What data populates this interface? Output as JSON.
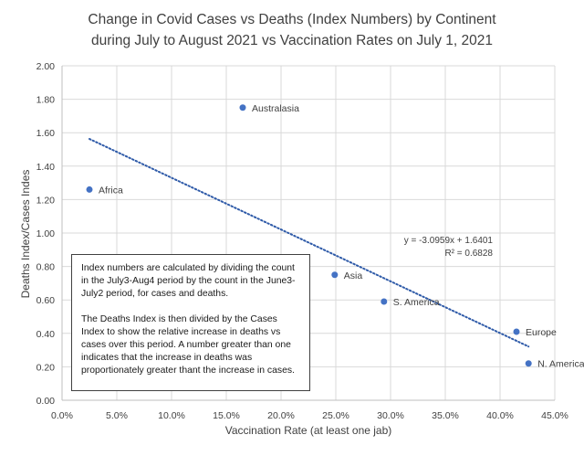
{
  "chart_data": {
    "type": "scatter",
    "title_lines": [
      "Change in Covid Cases vs Deaths  (Index Numbers) by Continent",
      "during July to August 2021 vs Vaccination Rates on July 1, 2021"
    ],
    "xlabel": "Vaccination Rate (at least one jab)",
    "ylabel": "Deaths Index/Cases Indes",
    "xlim": [
      0,
      0.45
    ],
    "ylim": [
      0,
      2.0
    ],
    "x_ticks": [
      0,
      0.05,
      0.1,
      0.15,
      0.2,
      0.25,
      0.3,
      0.35,
      0.4,
      0.45
    ],
    "x_tick_labels": [
      "0.0%",
      "5.0%",
      "10.0%",
      "15.0%",
      "20.0%",
      "25.0%",
      "30.0%",
      "35.0%",
      "40.0%",
      "45.0%"
    ],
    "y_ticks": [
      0,
      0.2,
      0.4,
      0.6,
      0.8,
      1.0,
      1.2,
      1.4,
      1.6,
      1.8,
      2.0
    ],
    "y_tick_labels": [
      "0.00",
      "0.20",
      "0.40",
      "0.60",
      "0.80",
      "1.00",
      "1.20",
      "1.40",
      "1.60",
      "1.80",
      "2.00"
    ],
    "grid": true,
    "marker_color": "#4472c4",
    "points": [
      {
        "label": "Africa",
        "x": 0.025,
        "y": 1.26
      },
      {
        "label": "Australasia",
        "x": 0.165,
        "y": 1.75
      },
      {
        "label": "Asia",
        "x": 0.249,
        "y": 0.75
      },
      {
        "label": "S. America",
        "x": 0.294,
        "y": 0.59
      },
      {
        "label": "Europe",
        "x": 0.415,
        "y": 0.41
      },
      {
        "label": "N. America",
        "x": 0.426,
        "y": 0.22
      }
    ],
    "trendline": {
      "slope": -3.0959,
      "intercept": 1.6401,
      "x_range": [
        0.025,
        0.426
      ],
      "equation": "y = -3.0959x + 1.6401",
      "r_squared": "R² = 0.6828",
      "style": "dotted",
      "color": "#2e5aa8"
    },
    "annotation": {
      "paragraphs": [
        "Index numbers are calculated by dividing the count in the July3-Aug4 period by the count in the June3-July2 period, for cases and deaths.",
        "The Deaths Index is then divided by the Cases Index to show the relative increase in deaths vs cases over this period.   A number greater than one indicates that the increase in deaths was proportionately greater thant the increase in cases."
      ]
    }
  }
}
